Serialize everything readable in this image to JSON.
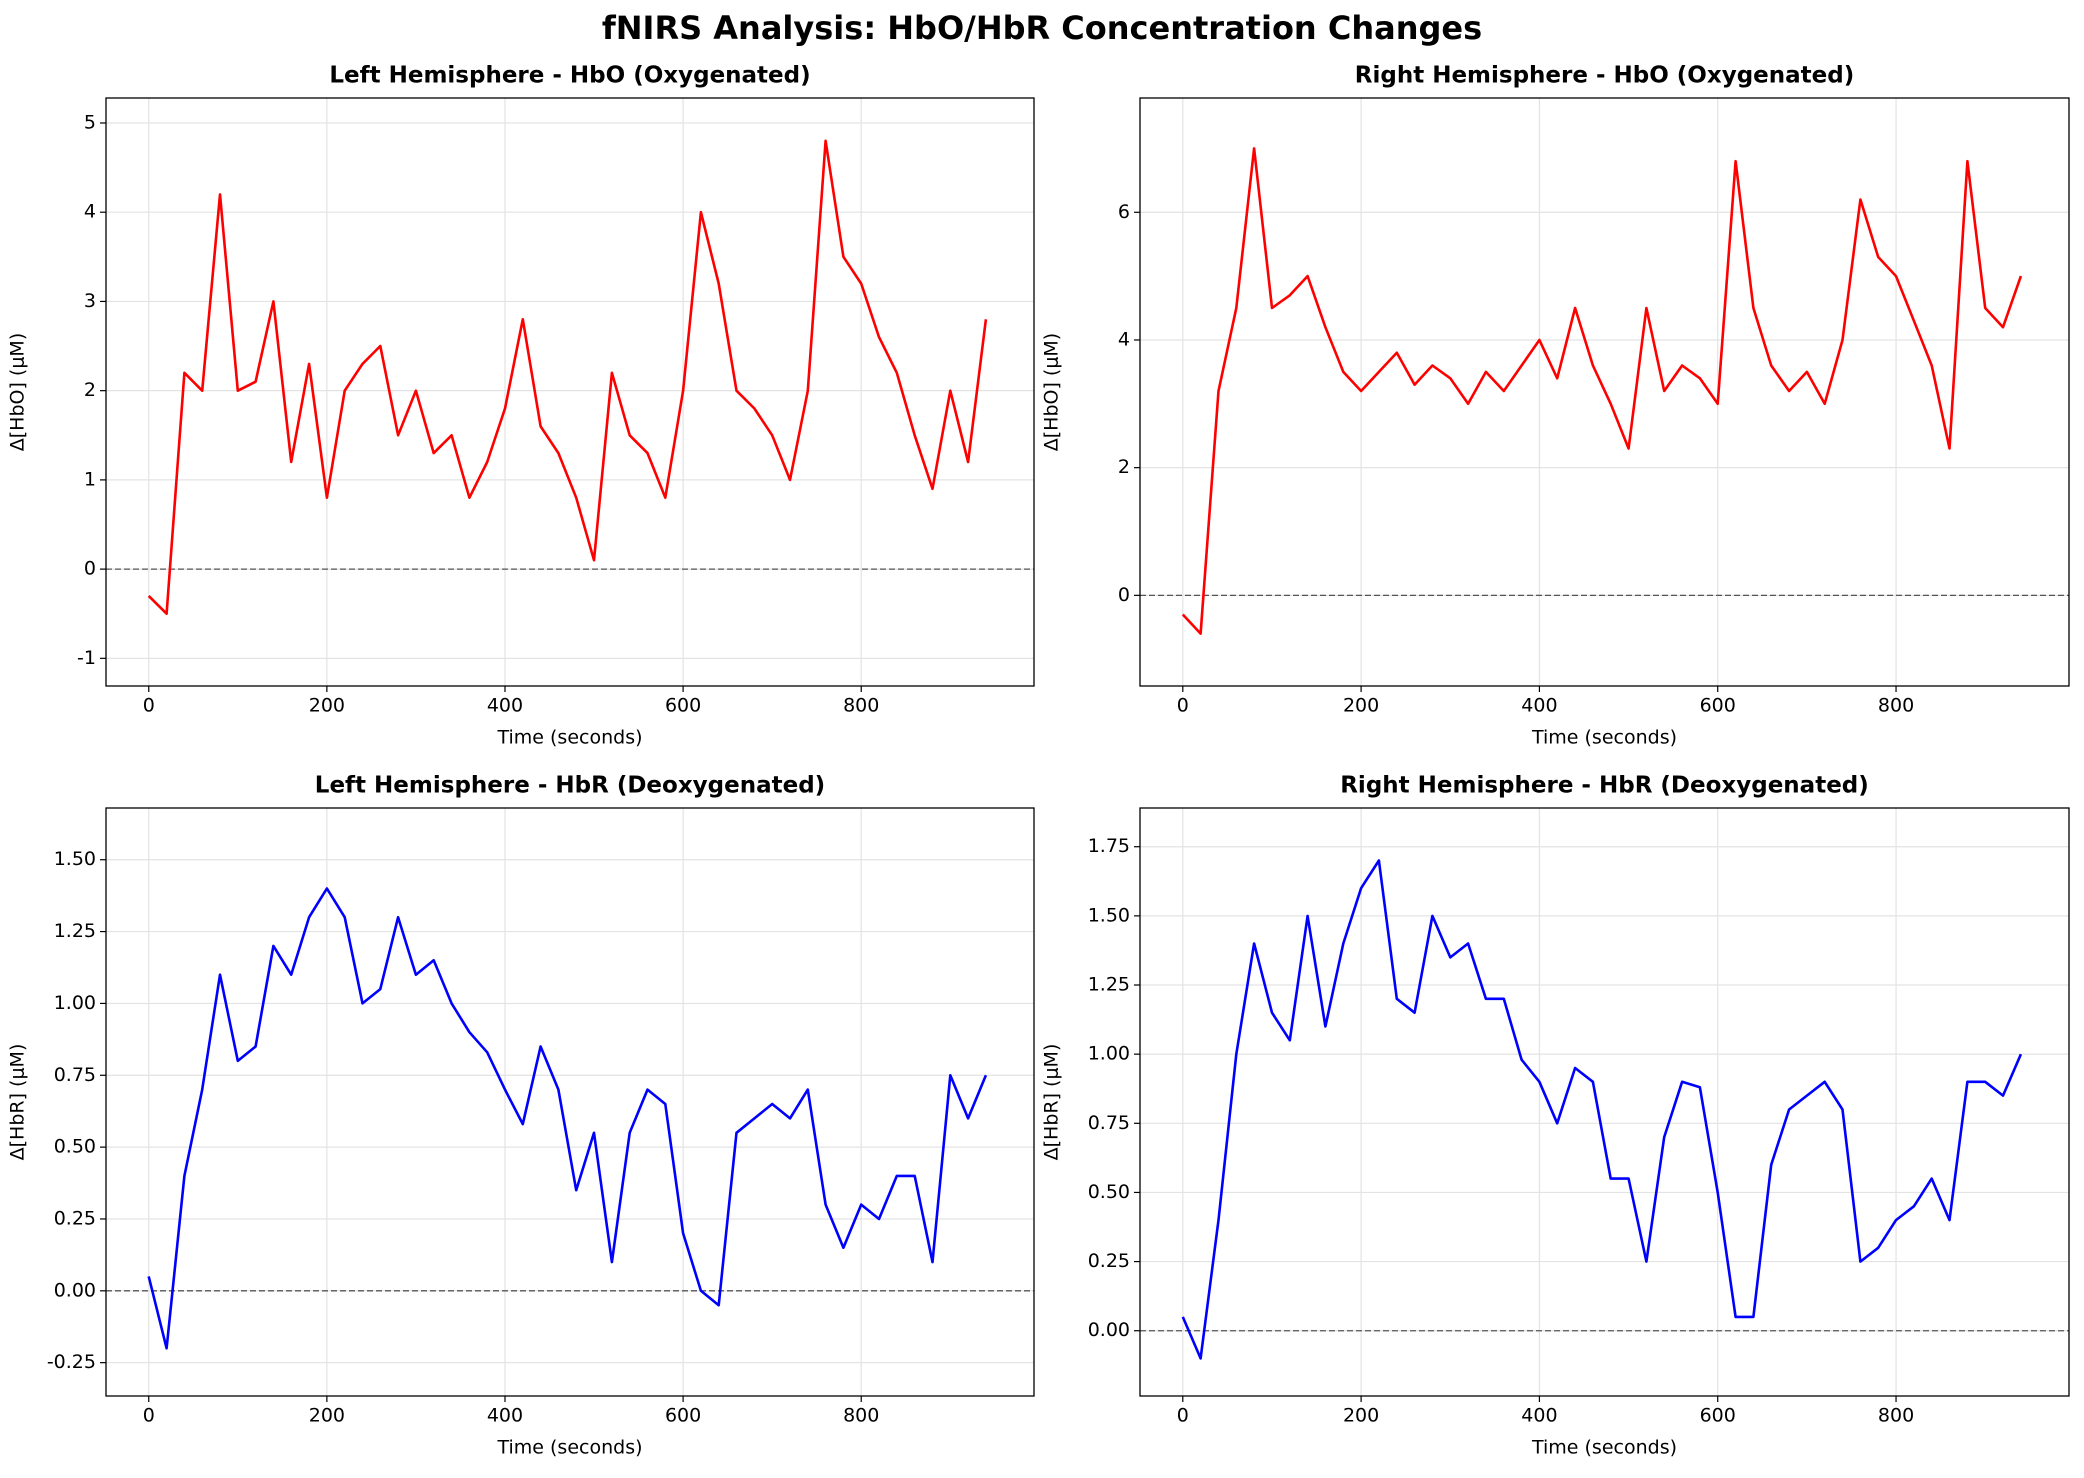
{
  "title": "fNIRS Analysis: HbO/HbR Concentration Changes",
  "chart_data": [
    {
      "type": "line",
      "title": "Left Hemisphere - HbO (Oxygenated)",
      "xlabel": "Time (seconds)",
      "ylabel": "Δ[HbO] (μM)",
      "color": "#ff0000",
      "grid": true,
      "reference_line": 0,
      "xlim": [
        -48,
        994
      ],
      "xticks": [
        0,
        200,
        400,
        600,
        800
      ],
      "ylim": [
        -1.31,
        5.28
      ],
      "yticks": [
        -1,
        0,
        1,
        2,
        3,
        4,
        5
      ],
      "x": [
        0,
        20,
        40,
        60,
        80,
        100,
        120,
        140,
        160,
        180,
        200,
        220,
        240,
        260,
        280,
        300,
        320,
        340,
        360,
        380,
        400,
        420,
        440,
        460,
        480,
        500,
        520,
        540,
        560,
        580,
        600,
        620,
        640,
        660,
        680,
        700,
        720,
        740,
        760,
        780,
        800,
        820,
        840,
        860,
        880,
        900,
        920,
        940
      ],
      "values": [
        -0.3,
        -0.5,
        2.2,
        2.0,
        4.2,
        2.0,
        2.1,
        3.0,
        1.2,
        2.3,
        0.8,
        2.0,
        2.3,
        2.5,
        1.5,
        2.0,
        1.3,
        1.5,
        0.8,
        1.2,
        1.8,
        2.8,
        1.6,
        1.3,
        0.8,
        0.1,
        2.2,
        1.5,
        1.3,
        0.8,
        2.0,
        4.0,
        3.2,
        2.0,
        1.8,
        1.5,
        1.0,
        2.0,
        4.8,
        3.5,
        3.2,
        2.6,
        2.2,
        1.5,
        0.9,
        2.0,
        1.2,
        2.8
      ]
    },
    {
      "type": "line",
      "title": "Right Hemisphere - HbO (Oxygenated)",
      "xlabel": "Time (seconds)",
      "ylabel": "Δ[HbO] (μM)",
      "color": "#ff0000",
      "grid": true,
      "reference_line": 0,
      "xlim": [
        -48,
        994
      ],
      "xticks": [
        0,
        200,
        400,
        600,
        800
      ],
      "ylim": [
        -1.42,
        7.79
      ],
      "yticks": [
        0,
        2,
        4,
        6
      ],
      "x": [
        0,
        20,
        40,
        60,
        80,
        100,
        120,
        140,
        160,
        180,
        200,
        220,
        240,
        260,
        280,
        300,
        320,
        340,
        360,
        380,
        400,
        420,
        440,
        460,
        480,
        500,
        520,
        540,
        560,
        580,
        600,
        620,
        640,
        660,
        680,
        700,
        720,
        740,
        760,
        780,
        800,
        820,
        840,
        860,
        880,
        900,
        920,
        940
      ],
      "values": [
        -0.3,
        -0.6,
        3.2,
        4.5,
        7.0,
        4.5,
        4.7,
        5.0,
        4.2,
        3.5,
        3.2,
        3.5,
        3.8,
        3.3,
        3.6,
        3.4,
        3.0,
        3.5,
        3.2,
        3.6,
        4.0,
        3.4,
        4.5,
        3.6,
        3.0,
        2.3,
        4.5,
        3.2,
        3.6,
        3.4,
        3.0,
        6.8,
        4.5,
        3.6,
        3.2,
        3.5,
        3.0,
        4.0,
        6.2,
        5.3,
        5.0,
        4.3,
        3.6,
        2.3,
        6.8,
        4.5,
        4.2,
        5.0
      ]
    },
    {
      "type": "line",
      "title": "Left Hemisphere - HbR (Deoxygenated)",
      "xlabel": "Time (seconds)",
      "ylabel": "Δ[HbR] (μM)",
      "color": "#0000ff",
      "grid": true,
      "reference_line": 0,
      "xlim": [
        -48,
        994
      ],
      "xticks": [
        0,
        200,
        400,
        600,
        800
      ],
      "ylim": [
        -0.366,
        1.68
      ],
      "yticks": [
        {
          "value": -0.25,
          "label": "-0.25"
        },
        {
          "value": 0,
          "label": "0.00"
        },
        {
          "value": 0.25,
          "label": "0.25"
        },
        {
          "value": 0.5,
          "label": "0.50"
        },
        {
          "value": 0.75,
          "label": "0.75"
        },
        {
          "value": 1,
          "label": "1.00"
        },
        {
          "value": 1.25,
          "label": "1.25"
        },
        {
          "value": 1.5,
          "label": "1.50"
        }
      ],
      "x": [
        0,
        20,
        40,
        60,
        80,
        100,
        120,
        140,
        160,
        180,
        200,
        220,
        240,
        260,
        280,
        300,
        320,
        340,
        360,
        380,
        400,
        420,
        440,
        460,
        480,
        500,
        520,
        540,
        560,
        580,
        600,
        620,
        640,
        660,
        680,
        700,
        720,
        740,
        760,
        780,
        800,
        820,
        840,
        860,
        880,
        900,
        920,
        940
      ],
      "values": [
        0.05,
        -0.2,
        0.4,
        0.7,
        1.1,
        0.8,
        0.85,
        1.2,
        1.1,
        1.3,
        1.4,
        1.3,
        1.0,
        1.05,
        1.3,
        1.1,
        1.15,
        1.0,
        0.9,
        0.83,
        0.7,
        0.58,
        0.85,
        0.7,
        0.35,
        0.55,
        0.1,
        0.55,
        0.7,
        0.65,
        0.2,
        0.0,
        -0.05,
        0.55,
        0.6,
        0.65,
        0.6,
        0.7,
        0.3,
        0.15,
        0.3,
        0.25,
        0.4,
        0.4,
        0.1,
        0.75,
        0.6,
        0.75
      ]
    },
    {
      "type": "line",
      "title": "Right Hemisphere - HbR (Deoxygenated)",
      "xlabel": "Time (seconds)",
      "ylabel": "Δ[HbR] (μM)",
      "color": "#0000ff",
      "grid": true,
      "reference_line": 0,
      "xlim": [
        -48,
        994
      ],
      "xticks": [
        0,
        200,
        400,
        600,
        800
      ],
      "ylim": [
        -0.236,
        1.89
      ],
      "yticks": [
        {
          "value": 0,
          "label": "0.00"
        },
        {
          "value": 0.25,
          "label": "0.25"
        },
        {
          "value": 0.5,
          "label": "0.50"
        },
        {
          "value": 0.75,
          "label": "0.75"
        },
        {
          "value": 1,
          "label": "1.00"
        },
        {
          "value": 1.25,
          "label": "1.25"
        },
        {
          "value": 1.5,
          "label": "1.50"
        },
        {
          "value": 1.75,
          "label": "1.75"
        }
      ],
      "x": [
        0,
        20,
        40,
        60,
        80,
        100,
        120,
        140,
        160,
        180,
        200,
        220,
        240,
        260,
        280,
        300,
        320,
        340,
        360,
        380,
        400,
        420,
        440,
        460,
        480,
        500,
        520,
        540,
        560,
        580,
        600,
        620,
        640,
        660,
        680,
        700,
        720,
        740,
        760,
        780,
        800,
        820,
        840,
        860,
        880,
        900,
        920,
        940
      ],
      "values": [
        0.05,
        -0.1,
        0.4,
        1.0,
        1.4,
        1.15,
        1.05,
        1.5,
        1.1,
        1.4,
        1.6,
        1.7,
        1.2,
        1.15,
        1.5,
        1.35,
        1.4,
        1.2,
        1.2,
        0.98,
        0.9,
        0.75,
        0.95,
        0.9,
        0.55,
        0.55,
        0.25,
        0.7,
        0.9,
        0.88,
        0.5,
        0.05,
        0.05,
        0.6,
        0.8,
        0.85,
        0.9,
        0.8,
        0.25,
        0.3,
        0.4,
        0.45,
        0.55,
        0.4,
        0.9,
        0.9,
        0.85,
        1.0
      ]
    }
  ]
}
